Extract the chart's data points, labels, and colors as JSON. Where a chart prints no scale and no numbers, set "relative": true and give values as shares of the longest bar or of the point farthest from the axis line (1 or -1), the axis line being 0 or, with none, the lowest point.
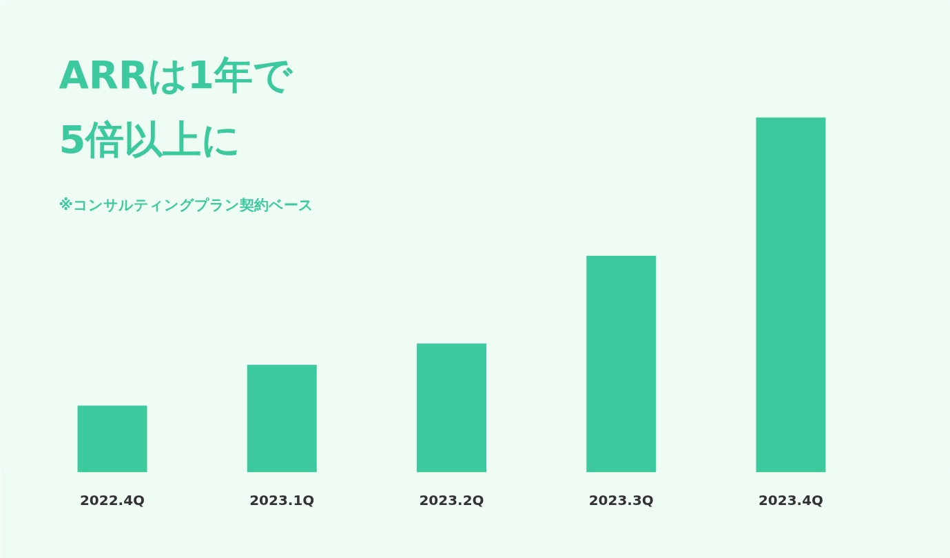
{
  "chart_data": {
    "type": "bar",
    "title": "ARRは1年で\n5倍以上に",
    "annotations": [
      "※コンサルティングプラン契約ベース"
    ],
    "categories": [
      "2022.4Q",
      "2023.1Q",
      "2023.2Q",
      "2023.3Q",
      "2023.4Q"
    ],
    "values": [
      0.188,
      0.303,
      0.363,
      0.61,
      1
    ],
    "color": "#3cc99e",
    "relative": true,
    "grid": false
  }
}
